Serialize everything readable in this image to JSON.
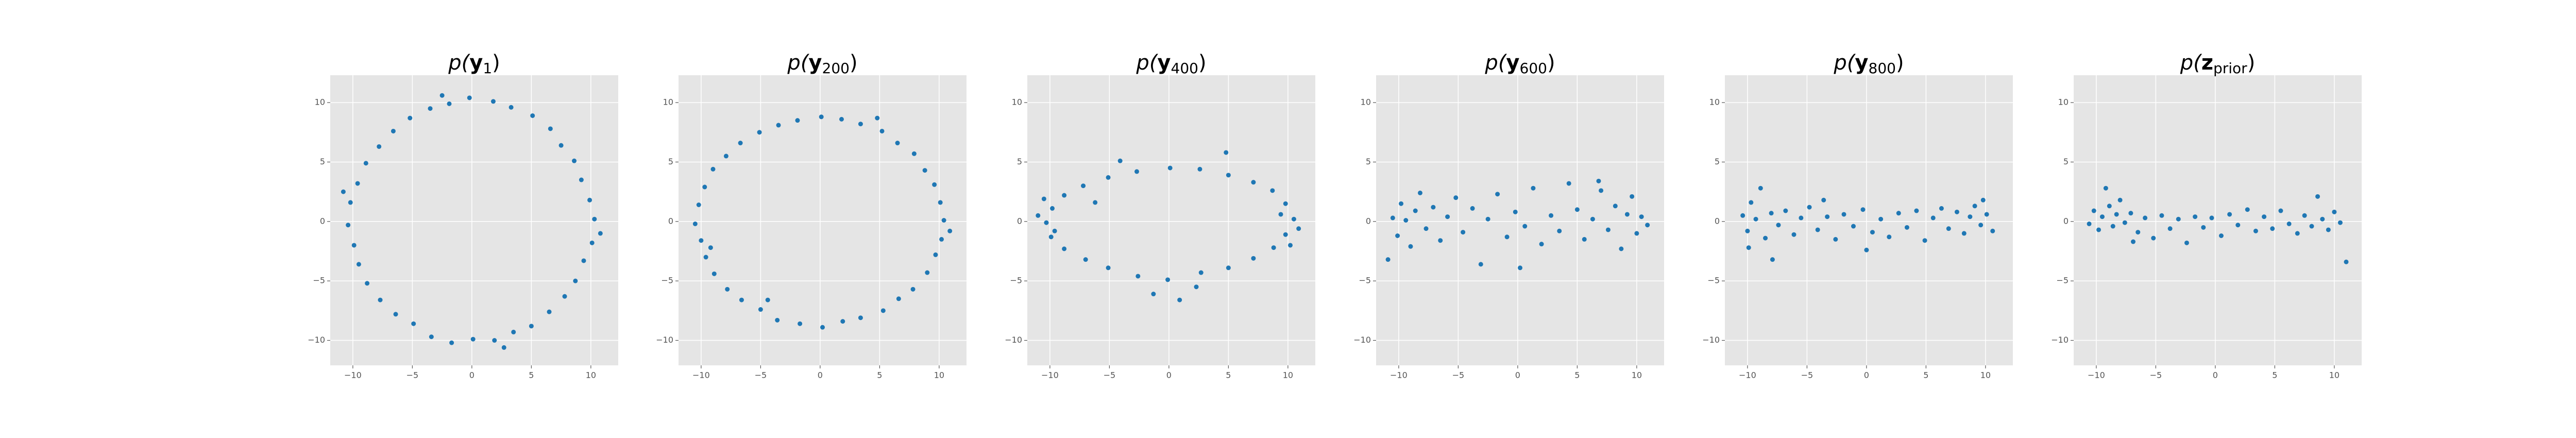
{
  "chart_data": [
    {
      "type": "scatter",
      "title": [
        "p(",
        "y",
        "1",
        ")"
      ],
      "color": "#1f77b4",
      "grid": true,
      "xlim": [
        -11.9,
        12.3
      ],
      "ylim": [
        -12.1,
        12.3
      ],
      "xticks": [
        {
          "value": -10,
          "label": "−10"
        },
        {
          "value": -5,
          "label": "−5"
        },
        0,
        5,
        10
      ],
      "yticks": [
        {
          "value": -10,
          "label": "−10"
        },
        {
          "value": -5,
          "label": "−5"
        },
        0,
        5,
        10
      ],
      "x": [
        10.3,
        9.9,
        9.2,
        8.6,
        7.5,
        6.6,
        5.1,
        3.3,
        1.8,
        -0.2,
        -1.9,
        -3.5,
        -5.2,
        -6.6,
        -7.8,
        -8.9,
        -9.6,
        -10.2,
        -10.4,
        -9.9,
        -9.5,
        -8.8,
        -7.7,
        -6.4,
        -4.9,
        -3.4,
        -1.7,
        0.1,
        1.9,
        3.5,
        5.0,
        6.5,
        7.8,
        8.7,
        9.4,
        10.1,
        -10.8,
        10.8,
        -2.5,
        2.7
      ],
      "y": [
        0.2,
        1.8,
        3.5,
        5.1,
        6.4,
        7.8,
        8.9,
        9.6,
        10.1,
        10.4,
        9.9,
        9.5,
        8.7,
        7.6,
        6.3,
        4.9,
        3.2,
        1.6,
        -0.3,
        -2.0,
        -3.6,
        -5.2,
        -6.6,
        -7.8,
        -8.6,
        -9.7,
        -10.2,
        -9.9,
        -10.0,
        -9.3,
        -8.8,
        -7.6,
        -6.3,
        -5.0,
        -3.3,
        -1.8,
        2.5,
        -1.0,
        10.6,
        -10.6
      ]
    },
    {
      "type": "scatter",
      "title": [
        "p(",
        "y",
        "200",
        ")"
      ],
      "color": "#1f77b4",
      "grid": true,
      "xlim": [
        -11.9,
        12.3
      ],
      "ylim": [
        -12.1,
        12.3
      ],
      "xticks": [
        {
          "value": -10,
          "label": "−10"
        },
        {
          "value": -5,
          "label": "−5"
        },
        0,
        5,
        10
      ],
      "yticks": [
        {
          "value": -10,
          "label": "−10"
        },
        {
          "value": -5,
          "label": "−5"
        },
        0,
        5,
        10
      ],
      "x": [
        10.4,
        10.1,
        9.6,
        8.8,
        7.9,
        6.5,
        5.2,
        3.4,
        1.8,
        0.1,
        -1.9,
        -3.5,
        -5.1,
        -6.7,
        -7.9,
        -9.0,
        -9.7,
        -10.2,
        -10.5,
        -10.0,
        -9.6,
        -8.9,
        -7.8,
        -6.6,
        -5.0,
        -3.6,
        -1.7,
        0.2,
        1.9,
        3.4,
        5.3,
        6.6,
        7.8,
        9.0,
        9.7,
        10.2,
        -9.2,
        10.9,
        -4.4,
        4.8
      ],
      "y": [
        0.1,
        1.6,
        3.1,
        4.3,
        5.7,
        6.6,
        7.6,
        8.2,
        8.6,
        8.8,
        8.5,
        8.1,
        7.5,
        6.6,
        5.5,
        4.4,
        2.9,
        1.4,
        -0.2,
        -1.6,
        -3.0,
        -4.4,
        -5.7,
        -6.6,
        -7.4,
        -8.3,
        -8.6,
        -8.9,
        -8.4,
        -8.1,
        -7.5,
        -6.5,
        -5.7,
        -4.3,
        -2.8,
        -1.5,
        -2.2,
        -0.8,
        -6.6,
        8.7
      ]
    },
    {
      "type": "scatter",
      "title": [
        "p(",
        "y",
        "400",
        ")"
      ],
      "color": "#1f77b4",
      "grid": true,
      "xlim": [
        -11.9,
        12.3
      ],
      "ylim": [
        -12.1,
        12.3
      ],
      "xticks": [
        {
          "value": -10,
          "label": "−10"
        },
        {
          "value": -5,
          "label": "−5"
        },
        0,
        5,
        10
      ],
      "yticks": [
        {
          "value": -10,
          "label": "−10"
        },
        {
          "value": -5,
          "label": "−5"
        },
        0,
        5,
        10
      ],
      "x": [
        10.5,
        9.8,
        8.7,
        7.1,
        5.0,
        2.6,
        0.1,
        -2.7,
        -5.1,
        -7.2,
        -8.8,
        -9.8,
        -10.3,
        -9.9,
        -8.8,
        -7.0,
        -5.1,
        -2.6,
        -0.1,
        2.7,
        5.0,
        7.1,
        8.8,
        9.8,
        10.9,
        -11.0,
        9.4,
        -9.6,
        -1.3,
        0.9,
        4.8,
        -4.1,
        2.3,
        -6.2,
        10.2,
        -10.5
      ],
      "y": [
        0.2,
        1.5,
        2.6,
        3.3,
        3.9,
        4.4,
        4.5,
        4.2,
        3.7,
        3.0,
        2.2,
        1.1,
        -0.1,
        -1.3,
        -2.3,
        -3.2,
        -3.9,
        -4.6,
        -4.9,
        -4.3,
        -3.9,
        -3.1,
        -2.2,
        -1.1,
        -0.6,
        0.5,
        0.6,
        -0.8,
        -6.1,
        -6.6,
        5.8,
        5.1,
        -5.5,
        1.6,
        -2.0,
        1.9
      ]
    },
    {
      "type": "scatter",
      "title": [
        "p(",
        "y",
        "600",
        ")"
      ],
      "color": "#1f77b4",
      "grid": true,
      "xlim": [
        -11.9,
        12.3
      ],
      "ylim": [
        -12.1,
        12.3
      ],
      "xticks": [
        {
          "value": -10,
          "label": "−10"
        },
        {
          "value": -5,
          "label": "−5"
        },
        0,
        5,
        10
      ],
      "yticks": [
        {
          "value": -10,
          "label": "−10"
        },
        {
          "value": -5,
          "label": "−5"
        },
        0,
        5,
        10
      ],
      "x": [
        -10.5,
        -10.1,
        -9.8,
        -9.4,
        -9.0,
        -8.6,
        -8.2,
        -7.7,
        -7.1,
        -6.5,
        -5.9,
        -5.2,
        -4.6,
        -3.8,
        -3.1,
        -2.5,
        -1.7,
        -0.9,
        -0.2,
        0.6,
        1.3,
        2.0,
        2.8,
        3.5,
        4.3,
        5.0,
        5.6,
        6.3,
        7.0,
        7.6,
        8.2,
        8.7,
        9.2,
        9.6,
        10.0,
        10.4,
        10.9,
        -10.9,
        0.2,
        6.8
      ],
      "y": [
        0.3,
        -1.2,
        1.5,
        0.1,
        -2.1,
        0.9,
        2.4,
        -0.6,
        1.2,
        -1.6,
        0.4,
        2.0,
        -0.9,
        1.1,
        -3.6,
        0.2,
        2.3,
        -1.3,
        0.8,
        -0.4,
        2.8,
        -1.9,
        0.5,
        -0.8,
        3.2,
        1.0,
        -1.5,
        0.2,
        2.6,
        -0.7,
        1.3,
        -2.3,
        0.6,
        2.1,
        -1.0,
        0.4,
        -0.3,
        -3.2,
        -3.9,
        3.4
      ]
    },
    {
      "type": "scatter",
      "title": [
        "p(",
        "y",
        "800",
        ")"
      ],
      "color": "#1f77b4",
      "grid": true,
      "xlim": [
        -11.9,
        12.3
      ],
      "ylim": [
        -12.1,
        12.3
      ],
      "xticks": [
        {
          "value": -10,
          "label": "−10"
        },
        {
          "value": -5,
          "label": "−5"
        },
        0,
        5,
        10
      ],
      "yticks": [
        {
          "value": -10,
          "label": "−10"
        },
        {
          "value": -5,
          "label": "−5"
        },
        0,
        5,
        10
      ],
      "x": [
        -10.4,
        -10.0,
        -9.7,
        -9.3,
        -8.9,
        -8.5,
        -8.0,
        -7.4,
        -6.8,
        -6.1,
        -5.5,
        -4.8,
        -4.1,
        -3.3,
        -2.6,
        -1.9,
        -1.1,
        -0.3,
        0.5,
        1.2,
        1.9,
        2.7,
        3.4,
        4.2,
        4.9,
        5.6,
        6.3,
        6.9,
        7.6,
        8.2,
        8.7,
        9.1,
        9.6,
        10.1,
        10.6,
        -9.9,
        -7.9,
        0.0,
        9.8,
        -3.6
      ],
      "y": [
        0.5,
        -0.8,
        1.6,
        0.2,
        2.8,
        -1.4,
        0.7,
        -0.3,
        0.9,
        -1.1,
        0.3,
        1.2,
        -0.7,
        0.4,
        -1.5,
        0.6,
        -0.4,
        1.0,
        -0.9,
        0.2,
        -1.3,
        0.7,
        -0.5,
        0.9,
        -1.6,
        0.3,
        1.1,
        -0.6,
        0.8,
        -1.0,
        0.4,
        1.3,
        -0.3,
        0.6,
        -0.8,
        -2.2,
        -3.2,
        -2.4,
        1.8,
        1.8
      ]
    },
    {
      "type": "scatter",
      "title": [
        "p(",
        "z",
        "prior",
        ")"
      ],
      "color": "#1f77b4",
      "grid": true,
      "xlim": [
        -11.9,
        12.3
      ],
      "ylim": [
        -12.1,
        12.3
      ],
      "xticks": [
        {
          "value": -10,
          "label": "−10"
        },
        {
          "value": -5,
          "label": "−5"
        },
        0,
        5,
        10
      ],
      "yticks": [
        {
          "value": -10,
          "label": "−10"
        },
        {
          "value": -5,
          "label": "−5"
        },
        0,
        5,
        10
      ],
      "x": [
        -10.6,
        -10.2,
        -9.8,
        -9.5,
        -9.2,
        -8.9,
        -8.6,
        -8.3,
        -8.0,
        -7.6,
        -7.1,
        -6.5,
        -5.9,
        -5.2,
        -4.5,
        -3.8,
        -3.1,
        -2.4,
        -1.7,
        -1.0,
        -0.3,
        0.5,
        1.2,
        1.9,
        2.7,
        3.4,
        4.1,
        4.8,
        5.5,
        6.2,
        6.9,
        7.5,
        8.1,
        8.6,
        9.0,
        9.5,
        10.0,
        10.5,
        11.0,
        -6.9
      ],
      "y": [
        -0.2,
        0.9,
        -0.7,
        0.4,
        2.8,
        1.3,
        -0.4,
        0.6,
        1.8,
        -0.1,
        0.7,
        -0.9,
        0.3,
        -1.4,
        0.5,
        -0.6,
        0.2,
        -1.8,
        0.4,
        -0.5,
        0.3,
        -1.2,
        0.6,
        -0.3,
        1.0,
        -0.8,
        0.4,
        -0.6,
        0.9,
        -0.2,
        -1.0,
        0.5,
        -0.4,
        2.1,
        0.2,
        -0.7,
        0.8,
        -0.1,
        -3.4,
        -1.7
      ]
    }
  ]
}
